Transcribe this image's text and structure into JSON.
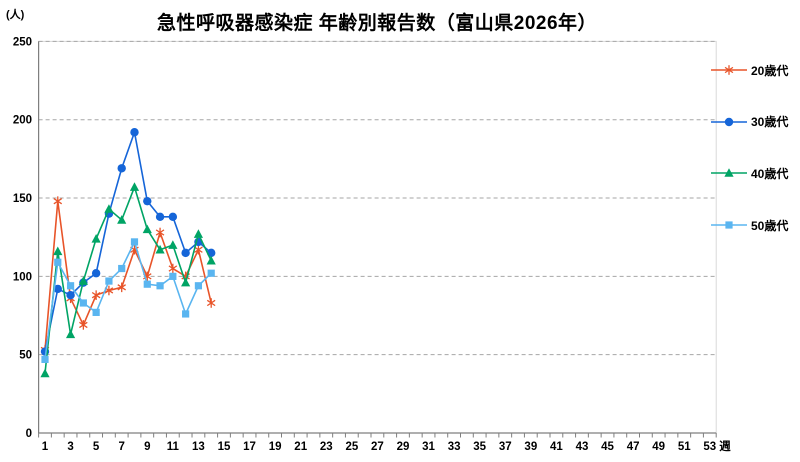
{
  "title": "急性呼吸器感染症 年齢別報告数（富山県2026年）",
  "y_axis_unit_label": "(人)",
  "x_axis_unit_label": "週",
  "colors": {
    "gridline": "#A6A6A6",
    "axis": "#7F7F7F",
    "plot_border": "#D9D9D9",
    "text": "#000000"
  },
  "chart_data": {
    "type": "line",
    "title": "急性呼吸器感染症 年齢別報告数（富山県2026年）",
    "xlabel": "週",
    "ylabel": "(人)",
    "x_axis": {
      "tick_labels": [
        1,
        3,
        5,
        7,
        9,
        11,
        13,
        15,
        17,
        19,
        21,
        23,
        25,
        27,
        29,
        31,
        33,
        35,
        37,
        39,
        41,
        43,
        45,
        47,
        49,
        51,
        53
      ],
      "max_week": 53,
      "start_week": 1
    },
    "y_axis": {
      "ticks": [
        0,
        50,
        100,
        150,
        200,
        250
      ],
      "range": [
        0,
        250
      ]
    },
    "grid": "horizontal-dashed",
    "legend_position": "right",
    "weeks_with_data": [
      1,
      2,
      3,
      4,
      5,
      6,
      7,
      8,
      9,
      10,
      11,
      12,
      13,
      14
    ],
    "series": [
      {
        "name": "20歳代",
        "marker": "asterisk",
        "color": "#E85429",
        "values": [
          53,
          148,
          86,
          69,
          88,
          91,
          93,
          117,
          100,
          128,
          105,
          100,
          117,
          83
        ]
      },
      {
        "name": "30歳代",
        "marker": "circle",
        "color": "#1565D8",
        "values": [
          52,
          92,
          88,
          96,
          102,
          140,
          169,
          192,
          148,
          138,
          138,
          115,
          122,
          115
        ]
      },
      {
        "name": "40歳代",
        "marker": "triangle",
        "color": "#00A465",
        "values": [
          38,
          116,
          63,
          97,
          124,
          143,
          136,
          157,
          130,
          117,
          120,
          96,
          127,
          110
        ]
      },
      {
        "name": "50歳代",
        "marker": "square",
        "color": "#5AB5F0",
        "values": [
          47,
          109,
          94,
          83,
          77,
          97,
          105,
          122,
          95,
          94,
          100,
          76,
          94,
          102
        ]
      }
    ]
  }
}
